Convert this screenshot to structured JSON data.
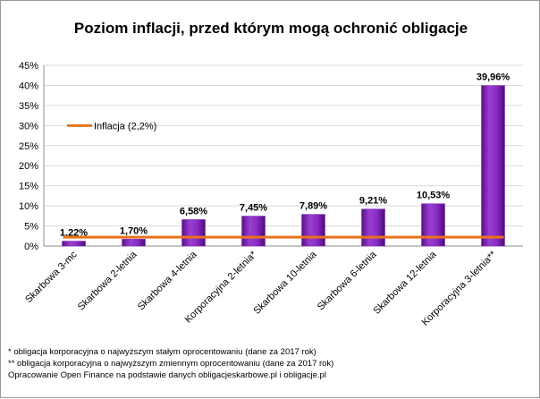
{
  "chart_data": {
    "type": "bar",
    "title": "Poziom inflacji, przed którym mogą ochronić obligacje",
    "categories": [
      "Skarbowa 3-mc",
      "Skarbowa 2-letnia",
      "Skarbowa 4-letnia",
      "Korporacyjna 2-letnia*",
      "Skarbowa 10-letnia",
      "Skarbowa 6-letnia",
      "Skarbowa 12-letnia",
      "Korporacyjna 3-letnia**"
    ],
    "values": [
      1.22,
      1.7,
      6.58,
      7.45,
      7.89,
      9.21,
      10.53,
      39.96
    ],
    "data_labels": [
      "1,22%",
      "1,70%",
      "6,58%",
      "7,45%",
      "7,89%",
      "9,21%",
      "10,53%",
      "39,96%"
    ],
    "ylim": [
      0,
      45
    ],
    "yticks": [
      0,
      5,
      10,
      15,
      20,
      25,
      30,
      35,
      40,
      45
    ],
    "ytick_labels": [
      "0%",
      "5%",
      "10%",
      "15%",
      "20%",
      "25%",
      "30%",
      "35%",
      "40%",
      "45%"
    ],
    "grid": true,
    "bar_color": "#7a1fb0",
    "line": {
      "name": "Inflacja (2,2%)",
      "value": 2.2,
      "color": "#e8731c"
    },
    "legend_position": "left-inside"
  },
  "footnotes": {
    "note1": "* obligacja korporacyjna o najwyższym stałym oprocentowaniu (dane za 2017 rok)",
    "note2": "** obligacja korporacyjna o najwyższym zmiennym oprocentowaniu (dane za 2017 rok)",
    "source": "Opracowanie Open Finance na podstawie danych obligacjeskarbowe.pl i obligacje.pl"
  }
}
